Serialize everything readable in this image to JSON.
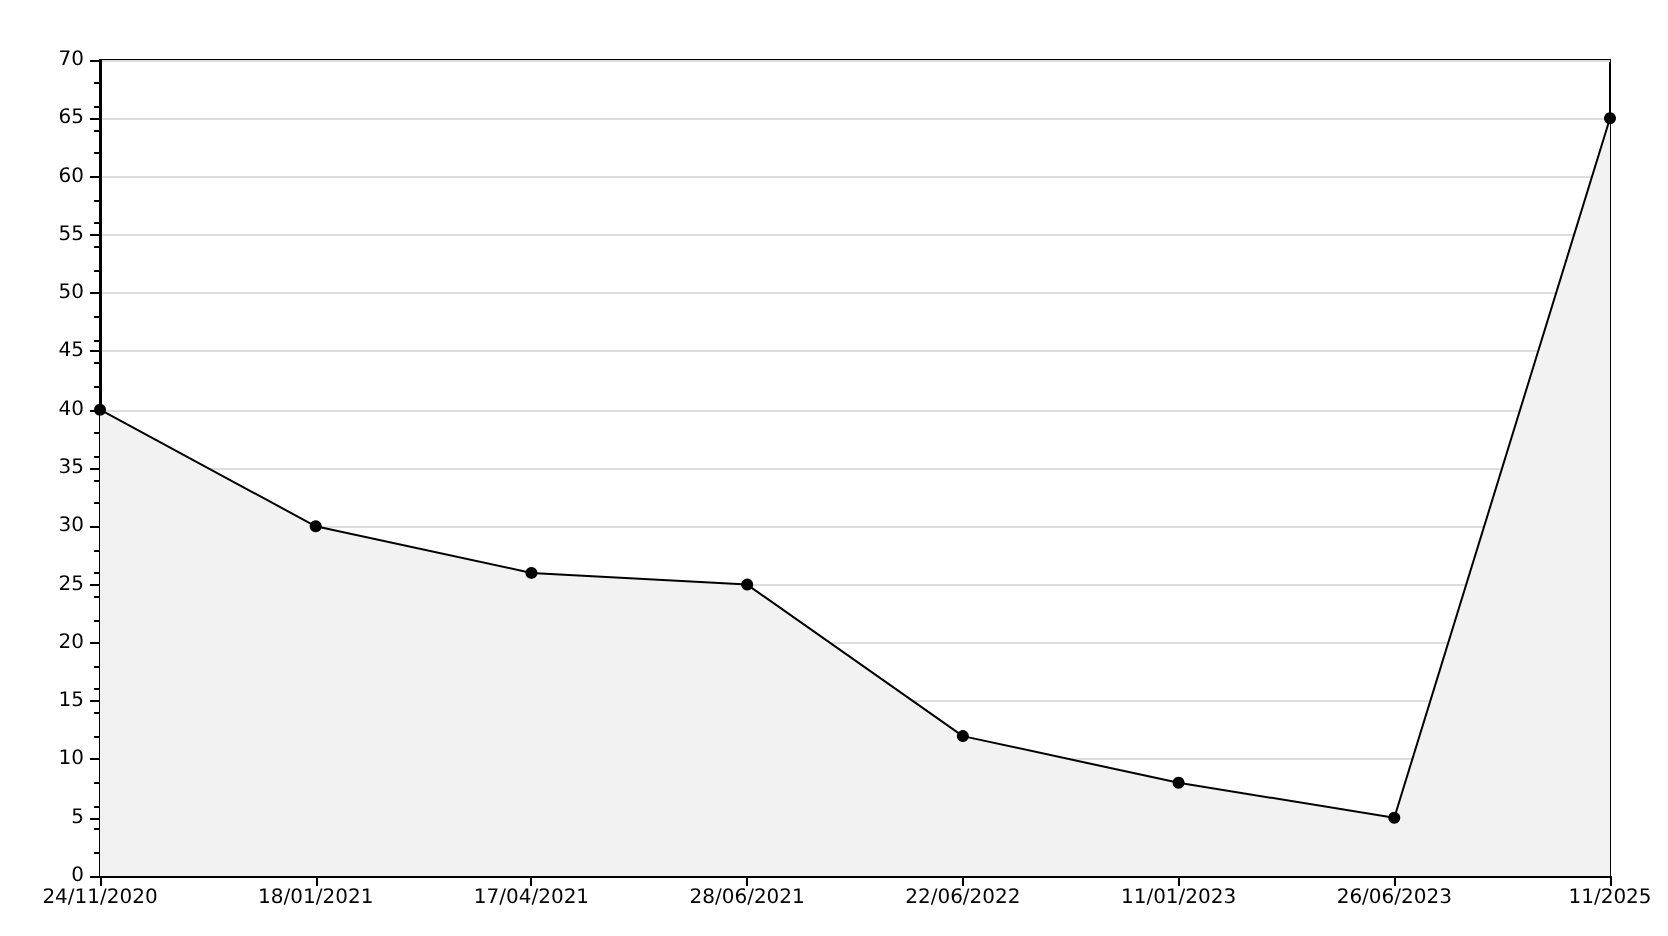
{
  "chart_data": {
    "type": "area",
    "categories": [
      "24/11/2020",
      "18/01/2021",
      "17/04/2021",
      "28/06/2021",
      "22/06/2022",
      "11/01/2023",
      "26/06/2023",
      "11/2025"
    ],
    "series": [
      {
        "color": "#000000",
        "values": [
          40,
          30,
          26,
          25,
          12,
          8,
          5,
          65
        ]
      }
    ],
    "ylim": [
      0,
      70
    ],
    "yticks": [
      0,
      5,
      10,
      15,
      20,
      25,
      30,
      35,
      40,
      45,
      50,
      55,
      60,
      65,
      70
    ],
    "grid": "y",
    "marker": "circle",
    "line_style": "solid"
  }
}
